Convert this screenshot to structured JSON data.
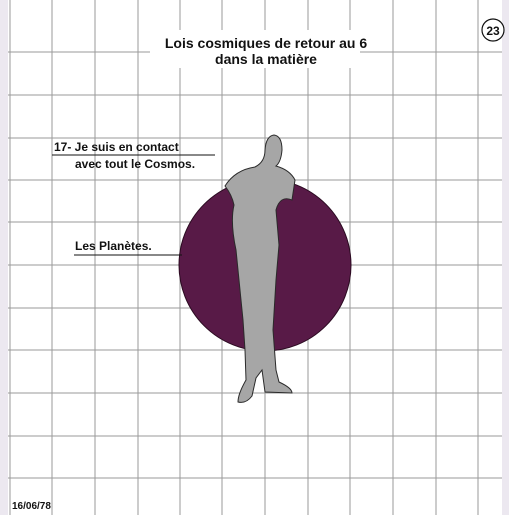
{
  "header": {
    "title_lines": [
      "Lois cosmiques de retour au 6",
      "dans la matière"
    ],
    "page_number": "23"
  },
  "labels": [
    {
      "lines": [
        "17- Je suis en contact",
        "avec tout le Cosmos."
      ]
    },
    {
      "lines": [
        "Les Planètes."
      ]
    }
  ],
  "footer": {
    "date": "16/06/78"
  }
}
